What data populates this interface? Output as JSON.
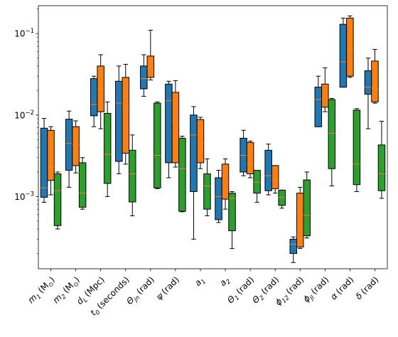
{
  "chart_data": {
    "type": "box",
    "y_scale": "log",
    "ylim": [
      0.00013,
      0.22
    ],
    "y_ticks": [
      {
        "value": 0.1,
        "base": "10",
        "exp": "−1"
      },
      {
        "value": 0.01,
        "base": "10",
        "exp": "−2"
      },
      {
        "value": 0.001,
        "base": "10",
        "exp": "−3"
      }
    ],
    "categories": [
      {
        "label": "m",
        "sub": "1",
        "unit": "(M",
        "unit_sub": "⊙",
        "unit_tail": ")"
      },
      {
        "label": "m",
        "sub": "2",
        "unit": "(M",
        "unit_sub": "⊙",
        "unit_tail": ")"
      },
      {
        "label": "d",
        "sub": "L",
        "unit": "(Mpc)"
      },
      {
        "label": "t",
        "sub": "0",
        "unit": "(seconds)"
      },
      {
        "label": "Θ",
        "sub": "jn",
        "unit": "(rad)"
      },
      {
        "label": "ψ",
        "sub": "",
        "unit": "(rad)"
      },
      {
        "label": "a",
        "sub": "1",
        "unit": ""
      },
      {
        "label": "a",
        "sub": "2",
        "unit": ""
      },
      {
        "label": "Θ",
        "sub": "1",
        "unit": "(rad)"
      },
      {
        "label": "Θ",
        "sub": "2",
        "unit": "(rad)"
      },
      {
        "label": "ϕ",
        "sub": "12",
        "unit": "(rad)"
      },
      {
        "label": "ϕ",
        "sub": "jl",
        "unit": "(rad)"
      },
      {
        "label": "α",
        "sub": "",
        "unit": "(rad)"
      },
      {
        "label": "δ",
        "sub": "",
        "unit": "(rad)"
      }
    ],
    "series_colors": [
      "#1f77b4",
      "#ff7f0e",
      "#2ca02c"
    ],
    "median_color": "#ff7f0e",
    "series": [
      {
        "boxes": [
          {
            "whislo": 0.00085,
            "q1": 0.00098,
            "med": 0.00128,
            "q3": 0.0069,
            "whishi": 0.0091
          },
          {
            "whislo": 0.0013,
            "q1": 0.0021,
            "med": 0.0045,
            "q3": 0.0089,
            "whishi": 0.0112
          },
          {
            "whislo": 0.0072,
            "q1": 0.0098,
            "med": 0.0135,
            "q3": 0.028,
            "whishi": 0.03
          },
          {
            "whislo": 0.0019,
            "q1": 0.0027,
            "med": 0.014,
            "q3": 0.026,
            "whishi": 0.04
          },
          {
            "whislo": 0.017,
            "q1": 0.021,
            "med": 0.028,
            "q3": 0.04,
            "whishi": 0.055
          },
          {
            "whislo": 0.0017,
            "q1": 0.0026,
            "med": 0.015,
            "q3": 0.024,
            "whishi": 0.026
          },
          {
            "whislo": 0.0003,
            "q1": 0.00115,
            "med": 0.0057,
            "q3": 0.01,
            "whishi": 0.0127
          },
          {
            "whislo": 0.00048,
            "q1": 0.00052,
            "med": 0.001,
            "q3": 0.0017,
            "whishi": 0.0021
          },
          {
            "whislo": 0.0018,
            "q1": 0.002,
            "med": 0.0032,
            "q3": 0.0052,
            "whishi": 0.0065
          },
          {
            "whislo": 0.00105,
            "q1": 0.00118,
            "med": 0.0018,
            "q3": 0.0037,
            "whishi": 0.0044
          },
          {
            "whislo": 0.000155,
            "q1": 0.0002,
            "med": 0.00026,
            "q3": 0.0003,
            "whishi": 0.00032
          },
          {
            "whislo": 0.0072,
            "q1": 0.0072,
            "med": 0.0155,
            "q3": 0.022,
            "whishi": 0.03
          },
          {
            "whislo": 0.022,
            "q1": 0.022,
            "med": 0.045,
            "q3": 0.13,
            "whishi": 0.155
          },
          {
            "whislo": 0.0068,
            "q1": 0.018,
            "med": 0.022,
            "q3": 0.035,
            "whishi": 0.05
          }
        ]
      },
      {
        "boxes": [
          {
            "whislo": 0.00105,
            "q1": 0.00158,
            "med": 0.0023,
            "q3": 0.0065,
            "whishi": 0.0072
          },
          {
            "whislo": 0.00195,
            "q1": 0.0024,
            "med": 0.0043,
            "q3": 0.0072,
            "whishi": 0.0085
          },
          {
            "whislo": 0.0068,
            "q1": 0.011,
            "med": 0.021,
            "q3": 0.04,
            "whishi": 0.055
          },
          {
            "whislo": 0.0025,
            "q1": 0.0034,
            "med": 0.0125,
            "q3": 0.029,
            "whishi": 0.042
          },
          {
            "whislo": 0.027,
            "q1": 0.029,
            "med": 0.037,
            "q3": 0.053,
            "whishi": 0.11
          },
          {
            "whislo": 0.0023,
            "q1": 0.0026,
            "med": 0.0085,
            "q3": 0.019,
            "whishi": 0.0265
          },
          {
            "whislo": 0.0022,
            "q1": 0.0026,
            "med": 0.0045,
            "q3": 0.0088,
            "whishi": 0.0094
          },
          {
            "whislo": 0.0007,
            "q1": 0.00093,
            "med": 0.0015,
            "q3": 0.0025,
            "whishi": 0.0029
          },
          {
            "whislo": 0.0017,
            "q1": 0.0019,
            "med": 0.0025,
            "q3": 0.0046,
            "whishi": 0.0048
          },
          {
            "whislo": 0.0011,
            "q1": 0.00125,
            "med": 0.0016,
            "q3": 0.0024,
            "whishi": 0.0024
          },
          {
            "whislo": 0.00023,
            "q1": 0.00024,
            "med": 0.00034,
            "q3": 0.0011,
            "whishi": 0.0013
          },
          {
            "whislo": 0.011,
            "q1": 0.0125,
            "med": 0.016,
            "q3": 0.024,
            "whishi": 0.038
          },
          {
            "whislo": 0.029,
            "q1": 0.03,
            "med": 0.063,
            "q3": 0.155,
            "whishi": 0.165
          },
          {
            "whislo": 0.014,
            "q1": 0.0145,
            "med": 0.021,
            "q3": 0.046,
            "whishi": 0.064
          }
        ]
      },
      {
        "boxes": [
          {
            "whislo": 0.0004,
            "q1": 0.00044,
            "med": 0.00118,
            "q3": 0.0019,
            "whishi": 0.002
          },
          {
            "whislo": 0.0007,
            "q1": 0.00074,
            "med": 0.0011,
            "q3": 0.0026,
            "whishi": 0.003
          },
          {
            "whislo": 0.001,
            "q1": 0.00145,
            "med": 0.0033,
            "q3": 0.0105,
            "whishi": 0.0145
          },
          {
            "whislo": 0.00058,
            "q1": 0.00086,
            "med": 0.0019,
            "q3": 0.0037,
            "whishi": 0.0057
          },
          {
            "whislo": 0.00125,
            "q1": 0.00128,
            "med": 0.0032,
            "q3": 0.014,
            "whishi": 0.0145
          },
          {
            "whislo": 0.00065,
            "q1": 0.00066,
            "med": 0.0022,
            "q3": 0.0052,
            "whishi": 0.0055
          },
          {
            "whislo": 0.00058,
            "q1": 0.0007,
            "med": 0.00135,
            "q3": 0.0019,
            "whishi": 0.0029
          },
          {
            "whislo": 0.00023,
            "q1": 0.00038,
            "med": 0.00095,
            "q3": 0.0011,
            "whishi": 0.00115
          },
          {
            "whislo": 0.00085,
            "q1": 0.0011,
            "med": 0.0015,
            "q3": 0.0021,
            "whishi": 0.0021
          },
          {
            "whislo": 0.00072,
            "q1": 0.00078,
            "med": 0.00098,
            "q3": 0.0012,
            "whishi": 0.0012
          },
          {
            "whislo": 0.00031,
            "q1": 0.00033,
            "med": 0.00059,
            "q3": 0.0016,
            "whishi": 0.002
          },
          {
            "whislo": 0.00135,
            "q1": 0.0022,
            "med": 0.006,
            "q3": 0.0155,
            "whishi": 0.016
          },
          {
            "whislo": 0.00115,
            "q1": 0.0014,
            "med": 0.0025,
            "q3": 0.0115,
            "whishi": 0.012
          },
          {
            "whislo": 0.00095,
            "q1": 0.00118,
            "med": 0.0019,
            "q3": 0.0043,
            "whishi": 0.0084
          }
        ]
      }
    ]
  }
}
